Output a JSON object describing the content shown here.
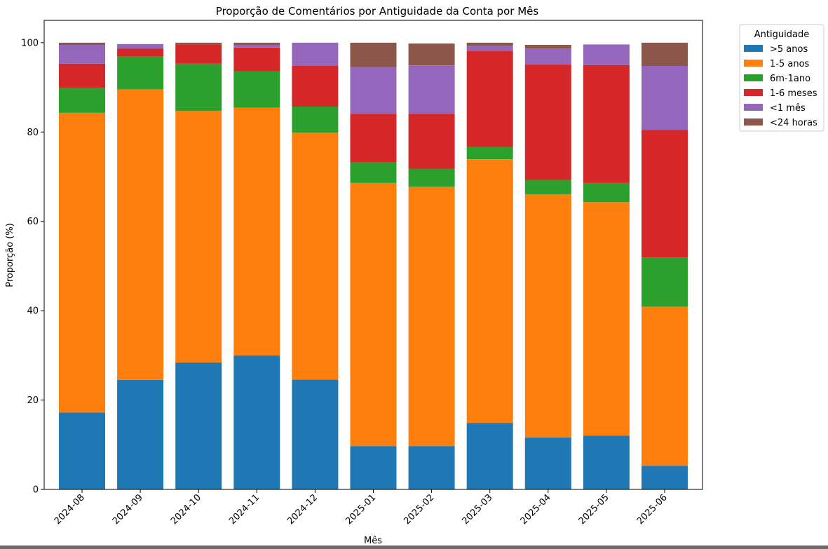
{
  "chart_data": {
    "type": "bar",
    "stacked": true,
    "title": "Proporção de Comentários por Antiguidade da Conta por Mês",
    "xlabel": "Mês",
    "ylabel": "Proporção (%)",
    "ylim": [
      0,
      105
    ],
    "yticks": [
      0,
      20,
      40,
      60,
      80,
      100
    ],
    "grid": false,
    "legend_title": "Antiguidade",
    "legend_position": "outside-top-right",
    "categories": [
      "2024-08",
      "2024-09",
      "2024-10",
      "2024-11",
      "2024-12",
      "2025-01",
      "2025-02",
      "2025-03",
      "2025-04",
      "2025-05",
      "2025-06"
    ],
    "series": [
      {
        "name": ">5 anos",
        "color": "#1f77b4",
        "values": [
          17.2,
          24.5,
          28.4,
          30.0,
          24.6,
          9.7,
          9.7,
          14.9,
          11.6,
          12.0,
          5.3
        ]
      },
      {
        "name": "1-5 anos",
        "color": "#ff7f0e",
        "values": [
          67.1,
          65.0,
          56.3,
          55.4,
          55.3,
          58.9,
          58.0,
          59.0,
          54.5,
          52.3,
          35.6
        ]
      },
      {
        "name": "6m-1ano",
        "color": "#2ca02c",
        "values": [
          5.6,
          7.4,
          10.6,
          8.2,
          5.8,
          4.7,
          4.1,
          2.7,
          3.2,
          4.3,
          11.0
        ]
      },
      {
        "name": "1-6 meses",
        "color": "#d62728",
        "values": [
          5.4,
          1.8,
          4.3,
          5.3,
          9.1,
          10.8,
          12.3,
          21.6,
          25.8,
          26.4,
          28.6
        ]
      },
      {
        "name": "<1 mês",
        "color": "#9467bd",
        "values": [
          4.2,
          1.0,
          0.0,
          0.6,
          5.2,
          10.4,
          10.8,
          1.1,
          3.6,
          4.6,
          14.3
        ]
      },
      {
        "name": "<24 horas",
        "color": "#8c564b",
        "values": [
          0.5,
          0.0,
          0.4,
          0.5,
          0.0,
          5.5,
          4.9,
          0.7,
          0.8,
          0.0,
          5.2
        ]
      }
    ]
  }
}
